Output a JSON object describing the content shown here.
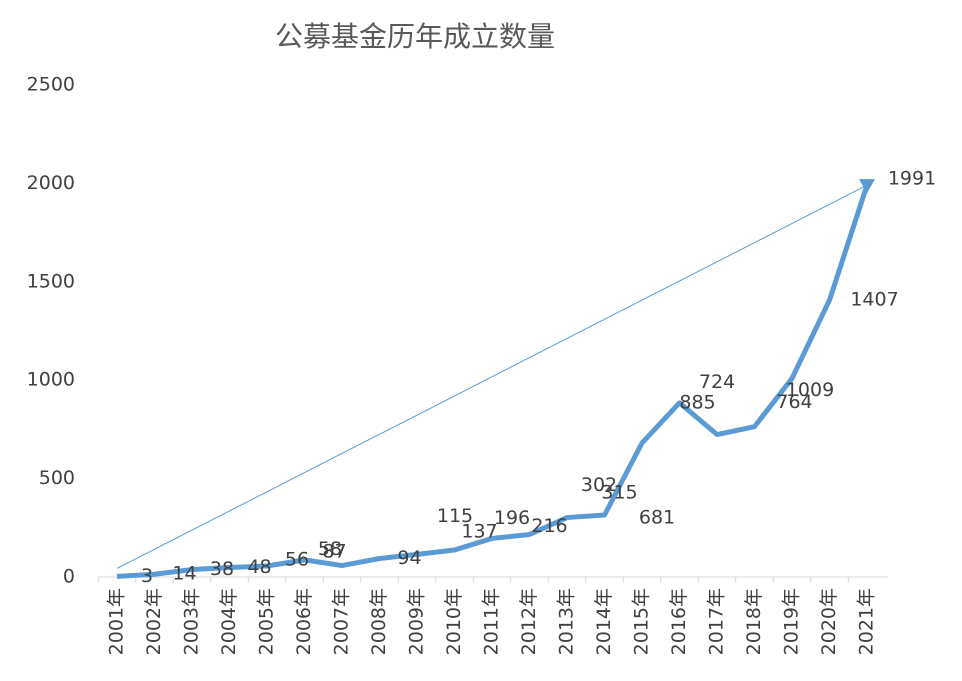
{
  "chart_data": {
    "type": "line",
    "title": "公募基金历年成立数量",
    "categories": [
      "2001年",
      "2002年",
      "2003年",
      "2004年",
      "2005年",
      "2006年",
      "2007年",
      "2008年",
      "2009年",
      "2010年",
      "2011年",
      "2012年",
      "2013年",
      "2014年",
      "2015年",
      "2016年",
      "2017年",
      "2018年",
      "2019年",
      "2020年",
      "2021年"
    ],
    "series": [
      {
        "name": "成立数量",
        "color": "#5b9bd5",
        "values": [
          3,
          14,
          38,
          48,
          56,
          87,
          58,
          94,
          115,
          137,
          196,
          216,
          302,
          315,
          681,
          885,
          724,
          764,
          1009,
          1407,
          1991
        ]
      }
    ],
    "ylim": [
      0,
      2500
    ],
    "yticks": [
      0,
      500,
      1000,
      1500,
      2000,
      2500
    ],
    "grid": false
  }
}
